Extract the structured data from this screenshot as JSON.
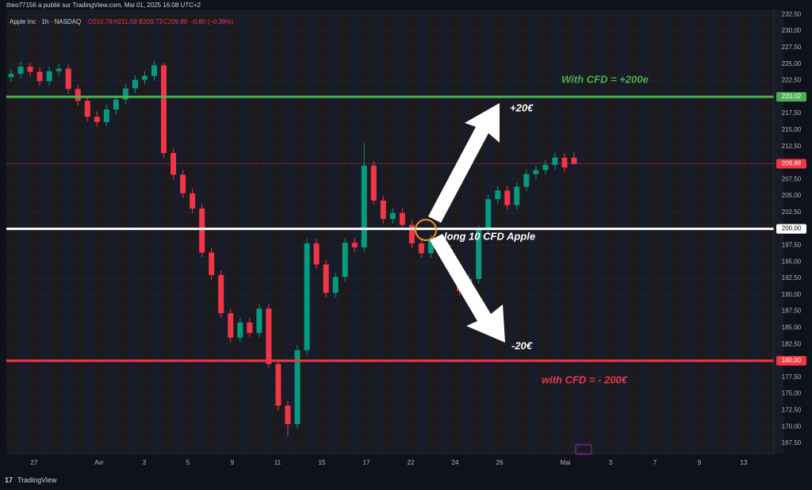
{
  "header": {
    "publisher": "theo77156 a publié sur TradingView.com, Mai 01, 2025 16:08 UTC+2",
    "symbol": "Apple Inc · 1h · NASDAQ",
    "ohlc": [
      "O210,79",
      "H211,59",
      "B209,73",
      "C209,88",
      "−0,80 (−0,38%)"
    ],
    "brand": "TradingView"
  },
  "chart_data": {
    "type": "candlestick",
    "categories": [
      "27",
      "Avr",
      "3",
      "5",
      "9",
      "11",
      "15",
      "17",
      "22",
      "24",
      "26",
      "Mai",
      "3",
      "7",
      "9",
      "13"
    ],
    "closes": [
      223.5,
      224.6,
      223.8,
      222.4,
      223.9,
      224.3,
      221.2,
      219.4,
      217.0,
      216.2,
      218.1,
      219.6,
      221.3,
      222.6,
      223.2,
      224.8,
      211.5,
      208.2,
      205.4,
      203.1,
      196.4,
      193.0,
      187.2,
      183.5,
      185.8,
      184.2,
      187.9,
      179.5,
      173.2,
      170.4,
      181.6,
      197.8,
      194.6,
      190.3,
      192.7,
      197.9,
      197.2,
      209.6,
      204.3,
      201.5,
      202.4,
      200.6,
      197.8,
      196.3,
      198.4,
      196.9,
      193.8,
      190.6,
      192.4,
      199.9,
      204.5,
      205.8,
      203.6,
      206.4,
      208.3,
      208.9,
      209.7,
      210.8,
      209.3,
      209.88
    ],
    "opens": [
      223.0,
      223.5,
      224.6,
      223.8,
      222.4,
      223.9,
      224.3,
      221.2,
      219.4,
      217.0,
      216.2,
      218.1,
      219.6,
      221.3,
      222.6,
      223.2,
      224.8,
      211.5,
      208.2,
      205.4,
      203.1,
      196.4,
      193.0,
      187.2,
      183.5,
      185.8,
      184.2,
      187.9,
      179.5,
      173.2,
      170.4,
      181.6,
      197.8,
      194.6,
      190.3,
      192.7,
      197.9,
      197.2,
      209.6,
      204.3,
      201.5,
      202.4,
      200.6,
      197.8,
      196.3,
      198.4,
      196.9,
      193.8,
      190.6,
      192.4,
      199.9,
      204.5,
      205.8,
      203.6,
      206.4,
      208.3,
      208.9,
      209.7,
      210.8,
      210.79
    ],
    "highs": [
      224.2,
      225.3,
      225.2,
      224.5,
      224.6,
      225.0,
      224.9,
      221.9,
      220.1,
      217.8,
      218.8,
      220.3,
      222.0,
      223.3,
      223.9,
      225.5,
      225.2,
      212.2,
      208.9,
      206.1,
      203.8,
      197.1,
      193.7,
      187.9,
      186.5,
      186.5,
      188.6,
      188.6,
      180.2,
      173.9,
      182.3,
      198.5,
      198.5,
      195.3,
      193.4,
      198.6,
      198.6,
      213.0,
      210.3,
      205.0,
      203.1,
      203.1,
      201.3,
      198.5,
      199.1,
      199.1,
      197.6,
      194.5,
      193.1,
      200.6,
      205.2,
      206.5,
      206.5,
      207.1,
      209.0,
      209.6,
      210.4,
      211.5,
      211.5,
      211.59
    ],
    "lows": [
      222.3,
      222.8,
      223.1,
      221.7,
      221.7,
      223.2,
      220.5,
      218.7,
      216.3,
      215.5,
      215.5,
      217.4,
      218.9,
      220.6,
      221.9,
      222.5,
      210.8,
      207.5,
      204.7,
      202.4,
      195.7,
      192.3,
      186.5,
      182.8,
      182.8,
      183.5,
      183.5,
      178.8,
      172.5,
      168.5,
      169.7,
      180.9,
      193.9,
      189.6,
      189.6,
      192.0,
      196.5,
      196.5,
      203.6,
      200.8,
      200.8,
      199.9,
      197.1,
      195.6,
      195.6,
      196.2,
      193.1,
      189.9,
      189.9,
      191.7,
      199.2,
      203.8,
      202.9,
      202.9,
      205.7,
      207.6,
      208.2,
      209.0,
      208.6,
      209.73
    ],
    "ylim": [
      165.93,
      233.26
    ],
    "yticks": [
      {
        "value": 167.5,
        "label": "167,50"
      },
      {
        "value": 170,
        "label": "170,00"
      },
      {
        "value": 172.5,
        "label": "172,50"
      },
      {
        "value": 175,
        "label": "175,00"
      },
      {
        "value": 177.5,
        "label": "177,50"
      },
      {
        "value": 180,
        "label": "180,00"
      },
      {
        "value": 182.5,
        "label": "182,50"
      },
      {
        "value": 185,
        "label": "185,00"
      },
      {
        "value": 187.5,
        "label": "187,50"
      },
      {
        "value": 190,
        "label": "190,00"
      },
      {
        "value": 192.5,
        "label": "192,50"
      },
      {
        "value": 195,
        "label": "195,00"
      },
      {
        "value": 197.5,
        "label": "197,50"
      },
      {
        "value": 200,
        "label": "200,00"
      },
      {
        "value": 202.5,
        "label": "202,50"
      },
      {
        "value": 205,
        "label": "205,00"
      },
      {
        "value": 207.5,
        "label": "207,50"
      },
      {
        "value": 210,
        "label": "210,00"
      },
      {
        "value": 212.5,
        "label": "212,50"
      },
      {
        "value": 215,
        "label": "215,00"
      },
      {
        "value": 217.5,
        "label": "217,50"
      },
      {
        "value": 220,
        "label": "220,00"
      },
      {
        "value": 222.5,
        "label": "222,50"
      },
      {
        "value": 225,
        "label": "225,00"
      },
      {
        "value": 227.5,
        "label": "227,50"
      },
      {
        "value": 230,
        "label": "230,00"
      },
      {
        "value": 232.5,
        "label": "232,50"
      }
    ],
    "up_color": "#089981",
    "down_color": "#f23645",
    "levels": [
      {
        "value": 220.02,
        "label": "220,02",
        "color": "#4caf50"
      },
      {
        "value": 200,
        "label": "200,00",
        "color": "#ffffff"
      },
      {
        "value": 180,
        "label": "180,00",
        "color": "#f23645"
      },
      {
        "value": 209.88,
        "label": "209,88",
        "color": "#f23645"
      }
    ],
    "annotations": [
      "With CFD = +200e",
      "+20€",
      "long 10 CFD Apple",
      "-20€",
      "with CFD = - 200€"
    ]
  }
}
